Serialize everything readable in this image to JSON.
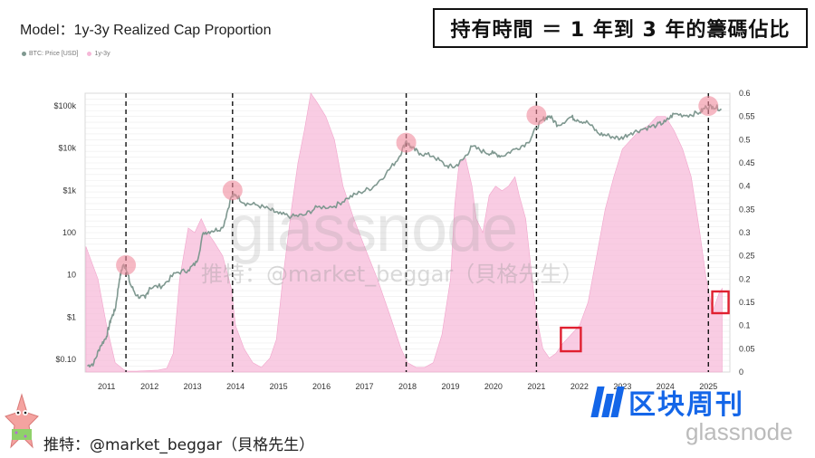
{
  "header": {
    "model_title": "Model：1y-3y Realized Cap Proportion",
    "cn_title": "持有時間 ＝ 1 年到 3 年的籌碼佔比"
  },
  "legend": [
    {
      "label": "BTC: Price [USD]",
      "color": "#7f9890"
    },
    {
      "label": "1y-3y",
      "color": "#f6b8d8"
    }
  ],
  "watermark": {
    "glass": "glassnode",
    "credit": "推特：@market_beggar（貝格先生）"
  },
  "footer": {
    "credit": "推特：@market_beggar（貝格先生）",
    "brand": "区块周刊",
    "glassnode": "glassnode"
  },
  "chart_data": {
    "type": "line",
    "title": "Model：1y-3y Realized Cap Proportion",
    "x_range": [
      2010.5,
      2025.5
    ],
    "x_ticks": [
      {
        "v": 2011,
        "label": "2011"
      },
      {
        "v": 2012,
        "label": "2012"
      },
      {
        "v": 2013,
        "label": "2013"
      },
      {
        "v": 2014,
        "label": "2014"
      },
      {
        "v": 2015,
        "label": "2015"
      },
      {
        "v": 2016,
        "label": "2016"
      },
      {
        "v": 2017,
        "label": "2017"
      },
      {
        "v": 2018,
        "label": "2018"
      },
      {
        "v": 2019,
        "label": "2019"
      },
      {
        "v": 2020,
        "label": "2020"
      },
      {
        "v": 2021,
        "label": "2021"
      },
      {
        "v": 2022,
        "label": "2022"
      },
      {
        "v": 2023,
        "label": "2023"
      },
      {
        "v": 2024,
        "label": "2024"
      },
      {
        "v": 2025,
        "label": "2025"
      }
    ],
    "y_left": {
      "scale": "log",
      "range": [
        0.05,
        200000
      ],
      "ticks": [
        {
          "v": 0.1,
          "label": "$0.10"
        },
        {
          "v": 1,
          "label": "$1"
        },
        {
          "v": 10,
          "label": "10"
        },
        {
          "v": 100,
          "label": "100"
        },
        {
          "v": 1000,
          "label": "$1k"
        },
        {
          "v": 10000,
          "label": "$10k"
        },
        {
          "v": 100000,
          "label": "$100k"
        }
      ]
    },
    "y_right": {
      "scale": "linear",
      "range": [
        0,
        0.6
      ],
      "ticks": [
        {
          "v": 0,
          "label": "0"
        },
        {
          "v": 0.05,
          "label": "0.05"
        },
        {
          "v": 0.1,
          "label": "0.1"
        },
        {
          "v": 0.15,
          "label": "0.15"
        },
        {
          "v": 0.2,
          "label": "0.2"
        },
        {
          "v": 0.25,
          "label": "0.25"
        },
        {
          "v": 0.3,
          "label": "0.3"
        },
        {
          "v": 0.35,
          "label": "0.35"
        },
        {
          "v": 0.4,
          "label": "0.4"
        },
        {
          "v": 0.45,
          "label": "0.45"
        },
        {
          "v": 0.5,
          "label": "0.5"
        },
        {
          "v": 0.55,
          "label": "0.55"
        },
        {
          "v": 0.6,
          "label": "0.6"
        }
      ]
    },
    "series": [
      {
        "name": "BTC: Price [USD]",
        "axis": "left",
        "color": "#7f9890",
        "kind": "line",
        "x": [
          2010.55,
          2010.7,
          2010.85,
          2011.0,
          2011.1,
          2011.2,
          2011.3,
          2011.38,
          2011.45,
          2011.55,
          2011.7,
          2011.9,
          2012.0,
          2012.3,
          2012.6,
          2012.9,
          2013.1,
          2013.25,
          2013.45,
          2013.7,
          2013.9,
          2014.0,
          2014.2,
          2014.5,
          2014.8,
          2015.0,
          2015.3,
          2015.6,
          2015.9,
          2016.3,
          2016.6,
          2016.9,
          2017.2,
          2017.5,
          2017.8,
          2017.97,
          2018.1,
          2018.3,
          2018.6,
          2018.9,
          2019.1,
          2019.3,
          2019.5,
          2019.8,
          2020.0,
          2020.2,
          2020.5,
          2020.8,
          2021.0,
          2021.15,
          2021.3,
          2021.5,
          2021.8,
          2021.95,
          2022.2,
          2022.45,
          2022.7,
          2022.95,
          2023.2,
          2023.5,
          2023.8,
          2024.0,
          2024.2,
          2024.5,
          2024.8,
          2024.95,
          2025.1,
          2025.3
        ],
        "values": [
          0.07,
          0.08,
          0.2,
          0.35,
          0.9,
          1.5,
          8,
          17,
          15,
          6,
          3.2,
          2.8,
          5,
          5.5,
          11,
          13,
          20,
          100,
          110,
          130,
          700,
          800,
          500,
          450,
          350,
          280,
          240,
          260,
          400,
          420,
          650,
          900,
          1200,
          2500,
          6000,
          15000,
          10000,
          7500,
          6500,
          3800,
          3600,
          5500,
          11000,
          8000,
          7500,
          6500,
          9500,
          13500,
          30000,
          48000,
          58000,
          35000,
          55000,
          47000,
          40000,
          22000,
          19500,
          16800,
          23000,
          29000,
          35000,
          42000,
          65000,
          60000,
          70000,
          95000,
          98000,
          85000
        ]
      },
      {
        "name": "1y-3y",
        "axis": "right",
        "color": "#f6b8d8",
        "kind": "area",
        "x": [
          2010.52,
          2010.6,
          2010.8,
          2011.0,
          2011.2,
          2011.4,
          2011.5,
          2011.7,
          2011.9,
          2012.2,
          2012.4,
          2012.55,
          2012.7,
          2012.9,
          2013.05,
          2013.2,
          2013.35,
          2013.5,
          2013.7,
          2013.9,
          2014.0,
          2014.2,
          2014.4,
          2014.6,
          2014.8,
          2014.95,
          2015.1,
          2015.3,
          2015.45,
          2015.6,
          2015.75,
          2015.9,
          2016.1,
          2016.3,
          2016.5,
          2016.75,
          2017.0,
          2017.3,
          2017.6,
          2017.85,
          2018.0,
          2018.2,
          2018.4,
          2018.6,
          2018.8,
          2019.0,
          2019.1,
          2019.2,
          2019.35,
          2019.5,
          2019.6,
          2019.75,
          2019.9,
          2020.05,
          2020.2,
          2020.35,
          2020.5,
          2020.6,
          2020.75,
          2020.9,
          2021.0,
          2021.15,
          2021.3,
          2021.45,
          2021.6,
          2021.8,
          2022.0,
          2022.2,
          2022.4,
          2022.6,
          2022.8,
          2023.0,
          2023.2,
          2023.4,
          2023.6,
          2023.8,
          2024.0,
          2024.2,
          2024.4,
          2024.6,
          2024.8,
          2024.95,
          2025.1,
          2025.25,
          2025.32
        ],
        "values": [
          0.27,
          0.25,
          0.2,
          0.1,
          0.02,
          0.005,
          0.002,
          0.002,
          0.003,
          0.004,
          0.008,
          0.04,
          0.2,
          0.31,
          0.3,
          0.33,
          0.3,
          0.28,
          0.25,
          0.18,
          0.1,
          0.05,
          0.02,
          0.01,
          0.03,
          0.07,
          0.2,
          0.35,
          0.45,
          0.52,
          0.6,
          0.58,
          0.55,
          0.5,
          0.4,
          0.33,
          0.27,
          0.2,
          0.12,
          0.05,
          0.02,
          0.01,
          0.01,
          0.02,
          0.08,
          0.2,
          0.36,
          0.45,
          0.46,
          0.4,
          0.33,
          0.3,
          0.38,
          0.4,
          0.39,
          0.4,
          0.42,
          0.38,
          0.33,
          0.2,
          0.12,
          0.05,
          0.03,
          0.04,
          0.06,
          0.08,
          0.1,
          0.15,
          0.25,
          0.35,
          0.42,
          0.48,
          0.5,
          0.52,
          0.53,
          0.55,
          0.55,
          0.52,
          0.48,
          0.42,
          0.3,
          0.2,
          0.13,
          0.17,
          0.18
        ]
      }
    ],
    "markers": [
      {
        "year": 2011.45,
        "price": 17
      },
      {
        "year": 2013.93,
        "price": 1000
      },
      {
        "year": 2017.97,
        "price": 13500
      },
      {
        "year": 2021.0,
        "price": 60000
      },
      {
        "year": 2025.0,
        "price": 100000
      }
    ],
    "dashed_lines": [
      2011.45,
      2013.93,
      2017.97,
      2021.0,
      2025.0
    ],
    "highlight_boxes": [
      {
        "year": 2021.8,
        "ratio": 0.07
      },
      {
        "year": 2025.28,
        "ratio": 0.15
      }
    ]
  }
}
